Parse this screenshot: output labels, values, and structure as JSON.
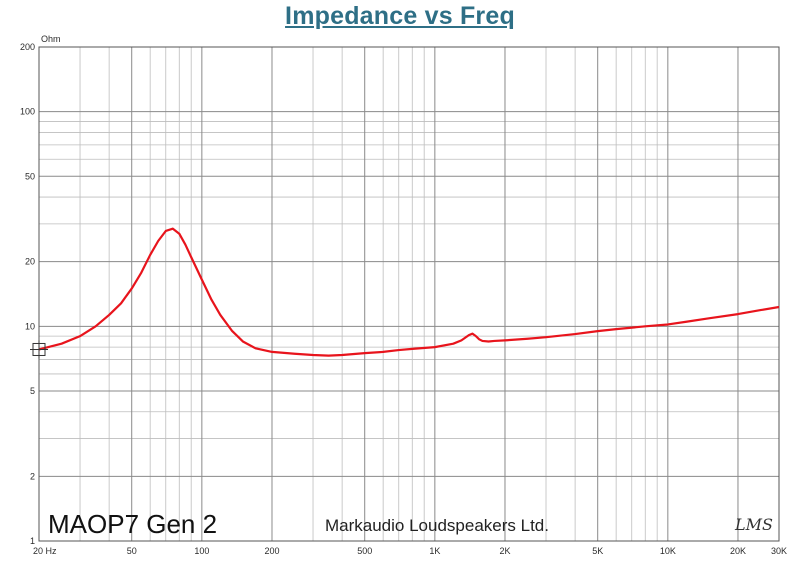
{
  "chart_data": {
    "type": "line",
    "title": "Impedance vs Freq",
    "y_unit": "Ohm",
    "x_scale": "log",
    "y_scale": "log",
    "xlim": [
      20,
      30000
    ],
    "ylim": [
      1,
      200
    ],
    "grid": true,
    "x_tick_labels": [
      {
        "value": 20,
        "label": "20 Hz"
      },
      {
        "value": 50,
        "label": "50"
      },
      {
        "value": 100,
        "label": "100"
      },
      {
        "value": 200,
        "label": "200"
      },
      {
        "value": 500,
        "label": "500"
      },
      {
        "value": 1000,
        "label": "1K"
      },
      {
        "value": 2000,
        "label": "2K"
      },
      {
        "value": 5000,
        "label": "5K"
      },
      {
        "value": 10000,
        "label": "10K"
      },
      {
        "value": 20000,
        "label": "20K"
      },
      {
        "value": 30000,
        "label": "30K"
      }
    ],
    "y_tick_labels": [
      {
        "value": 1,
        "label": "1"
      },
      {
        "value": 2,
        "label": "2"
      },
      {
        "value": 5,
        "label": "5"
      },
      {
        "value": 10,
        "label": "10"
      },
      {
        "value": 20,
        "label": "20"
      },
      {
        "value": 50,
        "label": "50"
      },
      {
        "value": 100,
        "label": "100"
      },
      {
        "value": 200,
        "label": "200"
      }
    ],
    "series": [
      {
        "color": "#e8141c",
        "x": [
          20,
          25,
          30,
          35,
          40,
          45,
          50,
          55,
          60,
          65,
          70,
          75,
          80,
          85,
          90,
          100,
          110,
          120,
          135,
          150,
          170,
          200,
          250,
          300,
          350,
          400,
          500,
          600,
          700,
          800,
          1000,
          1200,
          1300,
          1400,
          1450,
          1500,
          1550,
          1600,
          1700,
          1800,
          2000,
          2500,
          3000,
          4000,
          5000,
          6000,
          8000,
          10000,
          12000,
          15000,
          20000,
          25000,
          30000
        ],
        "y": [
          7.8,
          8.3,
          9.0,
          10.0,
          11.3,
          12.8,
          15.0,
          17.8,
          21.5,
          25.0,
          27.8,
          28.5,
          27.0,
          24.0,
          21.0,
          16.5,
          13.3,
          11.3,
          9.5,
          8.5,
          7.9,
          7.6,
          7.45,
          7.35,
          7.3,
          7.35,
          7.5,
          7.6,
          7.75,
          7.85,
          8.0,
          8.3,
          8.6,
          9.1,
          9.25,
          9.0,
          8.7,
          8.55,
          8.5,
          8.55,
          8.6,
          8.75,
          8.9,
          9.2,
          9.5,
          9.7,
          10.0,
          10.2,
          10.5,
          10.9,
          11.4,
          11.9,
          12.3
        ]
      }
    ]
  },
  "annotations": {
    "model": "MAOP7 Gen 2",
    "maker": "Markaudio Loudspeakers Ltd.",
    "logo": "LMS"
  }
}
